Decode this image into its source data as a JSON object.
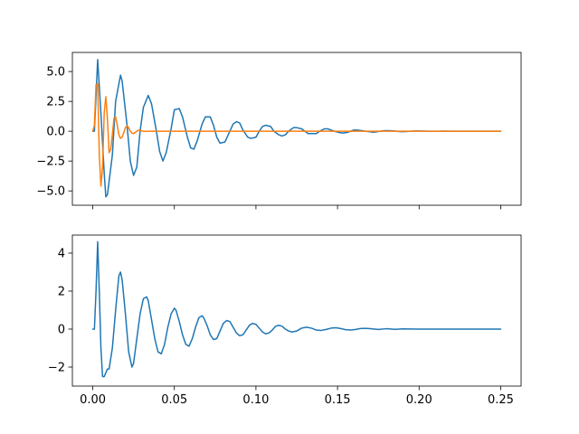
{
  "chart_data": [
    {
      "type": "line",
      "title": "",
      "xlabel": "",
      "ylabel": "",
      "xlim": [
        -0.0125,
        0.2625
      ],
      "ylim": [
        -6.2,
        6.6
      ],
      "xticks": [
        0.0,
        0.05,
        0.1,
        0.15,
        0.2,
        0.25
      ],
      "xtick_labels": [
        "",
        "",
        "",
        "",
        "",
        ""
      ],
      "yticks": [
        -5.0,
        -2.5,
        0.0,
        2.5,
        5.0
      ],
      "ytick_labels": [
        "−5.0",
        "−2.5",
        "0.0",
        "2.5",
        "5.0"
      ],
      "grid": false,
      "series": [
        {
          "color": "#1f77b4",
          "x": [
            0.0,
            0.001,
            0.002,
            0.003,
            0.005,
            0.007,
            0.008,
            0.009,
            0.012,
            0.014,
            0.017,
            0.018,
            0.021,
            0.023,
            0.025,
            0.027,
            0.029,
            0.031,
            0.034,
            0.036,
            0.039,
            0.041,
            0.043,
            0.045,
            0.048,
            0.05,
            0.053,
            0.055,
            0.058,
            0.06,
            0.062,
            0.064,
            0.067,
            0.069,
            0.072,
            0.074,
            0.076,
            0.078,
            0.081,
            0.083,
            0.086,
            0.088,
            0.09,
            0.092,
            0.095,
            0.097,
            0.1,
            0.102,
            0.104,
            0.106,
            0.109,
            0.111,
            0.114,
            0.116,
            0.118,
            0.12,
            0.123,
            0.125,
            0.128,
            0.13,
            0.132,
            0.134,
            0.137,
            0.139,
            0.142,
            0.144,
            0.146,
            0.148,
            0.151,
            0.153,
            0.156,
            0.158,
            0.16,
            0.162,
            0.165,
            0.167,
            0.17,
            0.172,
            0.174,
            0.176,
            0.179,
            0.181,
            0.184,
            0.186,
            0.188,
            0.19,
            0.193,
            0.195,
            0.198,
            0.2,
            0.205,
            0.21,
            0.215,
            0.22,
            0.225,
            0.23,
            0.235,
            0.24,
            0.245,
            0.25
          ],
          "y": [
            0.0,
            0.0,
            3.0,
            6.0,
            1.5,
            -3.5,
            -5.5,
            -5.3,
            -2.0,
            2.5,
            4.7,
            4.2,
            0.5,
            -2.5,
            -3.7,
            -3.0,
            0.0,
            2.0,
            3.0,
            2.3,
            0.0,
            -1.7,
            -2.5,
            -1.8,
            0.2,
            1.8,
            1.9,
            1.2,
            -0.5,
            -1.4,
            -1.5,
            -0.8,
            0.6,
            1.2,
            1.2,
            0.5,
            -0.5,
            -1.0,
            -0.9,
            -0.3,
            0.6,
            0.8,
            0.7,
            0.1,
            -0.5,
            -0.6,
            -0.5,
            0.0,
            0.4,
            0.5,
            0.4,
            0.0,
            -0.3,
            -0.4,
            -0.3,
            0.0,
            0.3,
            0.3,
            0.2,
            0.0,
            -0.2,
            -0.2,
            -0.2,
            0.0,
            0.2,
            0.2,
            0.1,
            0.0,
            -0.1,
            -0.15,
            -0.1,
            0.0,
            0.1,
            0.1,
            0.05,
            0.0,
            -0.05,
            -0.08,
            -0.05,
            0.0,
            0.05,
            0.05,
            0.03,
            0.0,
            -0.03,
            -0.04,
            -0.02,
            0.0,
            0.02,
            0.02,
            0.0,
            -0.01,
            0.01,
            0.0,
            0.0,
            0.0,
            0.0,
            0.0,
            0.0,
            0.0
          ]
        },
        {
          "color": "#ff7f0e",
          "x": [
            0.0,
            0.001,
            0.002,
            0.003,
            0.004,
            0.005,
            0.006,
            0.007,
            0.008,
            0.009,
            0.01,
            0.011,
            0.012,
            0.013,
            0.014,
            0.015,
            0.016,
            0.017,
            0.018,
            0.019,
            0.02,
            0.021,
            0.022,
            0.023,
            0.024,
            0.025,
            0.026,
            0.027,
            0.028,
            0.029,
            0.03,
            0.031,
            0.032,
            0.034,
            0.036,
            0.038,
            0.04,
            0.045,
            0.05,
            0.06,
            0.08,
            0.1,
            0.15,
            0.2,
            0.25
          ],
          "y": [
            0.0,
            0.5,
            3.9,
            4.0,
            -2.0,
            -4.6,
            -3.0,
            1.5,
            2.9,
            1.0,
            -1.8,
            -1.5,
            -0.3,
            1.1,
            1.2,
            0.5,
            -0.3,
            -0.6,
            -0.5,
            -0.1,
            0.3,
            0.45,
            0.3,
            0.0,
            -0.15,
            -0.2,
            -0.1,
            0.0,
            0.08,
            0.08,
            0.03,
            0.0,
            -0.02,
            0.0,
            0.0,
            0.0,
            0.0,
            0.0,
            0.0,
            0.0,
            0.0,
            0.0,
            0.0,
            0.0,
            0.0
          ]
        }
      ]
    },
    {
      "type": "line",
      "title": "",
      "xlabel": "",
      "ylabel": "",
      "xlim": [
        -0.0125,
        0.2625
      ],
      "ylim": [
        -3.0,
        4.95
      ],
      "xticks": [
        0.0,
        0.05,
        0.1,
        0.15,
        0.2,
        0.25
      ],
      "xtick_labels": [
        "0.00",
        "0.05",
        "0.10",
        "0.15",
        "0.20",
        "0.25"
      ],
      "yticks": [
        -2,
        0,
        2,
        4
      ],
      "ytick_labels": [
        "−2",
        "0",
        "2",
        "4"
      ],
      "grid": false,
      "series": [
        {
          "color": "#1f77b4",
          "x": [
            0.0,
            0.001,
            0.002,
            0.003,
            0.004,
            0.005,
            0.006,
            0.007,
            0.008,
            0.009,
            0.01,
            0.012,
            0.014,
            0.016,
            0.017,
            0.018,
            0.02,
            0.022,
            0.024,
            0.025,
            0.027,
            0.029,
            0.031,
            0.033,
            0.034,
            0.036,
            0.038,
            0.04,
            0.042,
            0.044,
            0.046,
            0.048,
            0.05,
            0.051,
            0.053,
            0.055,
            0.057,
            0.059,
            0.061,
            0.063,
            0.065,
            0.067,
            0.068,
            0.07,
            0.072,
            0.074,
            0.076,
            0.078,
            0.08,
            0.082,
            0.084,
            0.086,
            0.088,
            0.09,
            0.092,
            0.094,
            0.096,
            0.098,
            0.1,
            0.102,
            0.104,
            0.106,
            0.108,
            0.11,
            0.112,
            0.114,
            0.116,
            0.118,
            0.12,
            0.122,
            0.125,
            0.128,
            0.131,
            0.134,
            0.137,
            0.14,
            0.143,
            0.146,
            0.149,
            0.152,
            0.155,
            0.158,
            0.161,
            0.164,
            0.167,
            0.17,
            0.175,
            0.18,
            0.185,
            0.19,
            0.2,
            0.21,
            0.22,
            0.23,
            0.24,
            0.25
          ],
          "y": [
            0.0,
            0.0,
            2.0,
            4.6,
            2.0,
            -1.0,
            -2.5,
            -2.5,
            -2.3,
            -2.1,
            -2.1,
            -1.0,
            1.0,
            2.8,
            3.0,
            2.6,
            0.8,
            -1.2,
            -2.0,
            -1.8,
            -0.5,
            0.8,
            1.6,
            1.7,
            1.5,
            0.5,
            -0.5,
            -1.2,
            -1.3,
            -0.8,
            0.1,
            0.8,
            1.1,
            1.0,
            0.4,
            -0.3,
            -0.8,
            -0.9,
            -0.5,
            0.1,
            0.6,
            0.7,
            0.6,
            0.2,
            -0.3,
            -0.55,
            -0.5,
            -0.1,
            0.3,
            0.45,
            0.4,
            0.1,
            -0.2,
            -0.35,
            -0.3,
            -0.05,
            0.2,
            0.3,
            0.25,
            0.05,
            -0.15,
            -0.25,
            -0.2,
            -0.05,
            0.15,
            0.2,
            0.15,
            0.0,
            -0.1,
            -0.15,
            -0.1,
            0.05,
            0.1,
            0.05,
            -0.05,
            -0.07,
            -0.02,
            0.05,
            0.07,
            0.03,
            -0.03,
            -0.05,
            -0.02,
            0.03,
            0.04,
            0.02,
            -0.02,
            0.02,
            -0.01,
            0.01,
            0.0,
            0.0,
            0.0,
            0.0,
            0.0,
            0.0
          ]
        }
      ]
    }
  ]
}
